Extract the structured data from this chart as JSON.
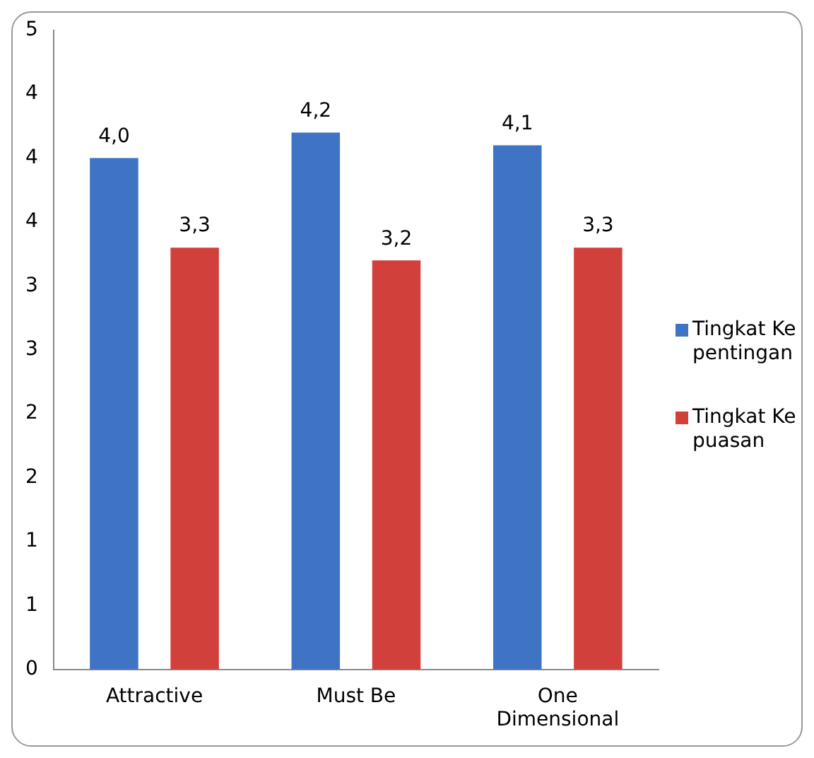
{
  "chart_data": {
    "type": "bar",
    "categories": [
      "Attractive",
      "Must Be",
      "One Dimensional"
    ],
    "series": [
      {
        "name": "Tingkat Kepentingan",
        "color": "#3f73c4",
        "values": [
          4.0,
          4.2,
          4.1
        ],
        "value_labels": [
          "4,0",
          "4,2",
          "4,1"
        ]
      },
      {
        "name": "Tingkat Kepuasan",
        "color": "#d2403b",
        "values": [
          3.3,
          3.2,
          3.3
        ],
        "value_labels": [
          "3,3",
          "3,2",
          "3,3"
        ]
      }
    ],
    "ylim": [
      0,
      5
    ],
    "yticks": [
      0,
      {
        "value": 0.5,
        "label": "1"
      },
      1,
      {
        "value": 1.5,
        "label": "2"
      },
      2,
      {
        "value": 2.5,
        "label": "3"
      },
      3,
      {
        "value": 3.5,
        "label": "4"
      },
      4,
      {
        "value": 4.5,
        "label": "4"
      },
      5
    ],
    "grid": false,
    "legend": "right"
  }
}
